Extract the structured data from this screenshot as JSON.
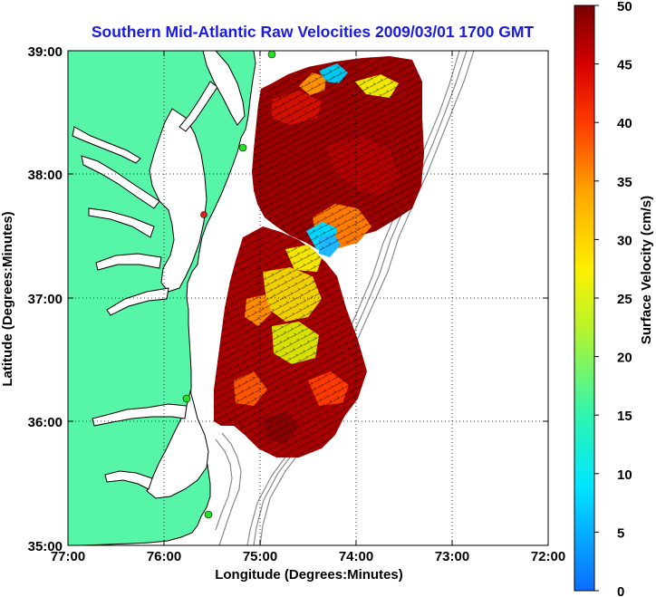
{
  "title": "Southern Mid-Atlantic Raw Velocities 2009/03/01 1700 GMT",
  "axes": {
    "xlabel": "Longitude (Degrees:Minutes)",
    "ylabel": "Latitude (Degrees:Minutes)",
    "xticks": [
      "77:00",
      "76:00",
      "75:00",
      "74:00",
      "73:00",
      "72:00"
    ],
    "yticks": [
      "39:00",
      "38:00",
      "37:00",
      "36:00",
      "35:00"
    ]
  },
  "colorbar": {
    "label": "Surface Velocity (cm/s)",
    "ticks": [
      "50",
      "45",
      "40",
      "35",
      "30",
      "25",
      "20",
      "15",
      "10",
      "5",
      "0"
    ],
    "min": 0,
    "max": 50
  },
  "colors": {
    "land": "#57f5a8",
    "coastline": "#000000",
    "title": "#1a1ae6",
    "bathymetry": "#8a8a8a",
    "station_active": "#22e022",
    "station_inactive": "#e02020"
  },
  "chart_data": {
    "type": "heatmap",
    "title": "Southern Mid-Atlantic Raw Velocities 2009/03/01 1700 GMT",
    "xlabel": "Longitude (Degrees:Minutes)",
    "ylabel": "Latitude (Degrees:Minutes)",
    "xlim": [
      -77,
      -72
    ],
    "ylim": [
      35,
      39
    ],
    "colorbar_label": "Surface Velocity (cm/s)",
    "colorbar_range": [
      0,
      50
    ],
    "stations": [
      {
        "lon": -74.88,
        "lat": 38.97,
        "status": "active"
      },
      {
        "lon": -75.15,
        "lat": 38.22,
        "status": "active"
      },
      {
        "lon": -75.57,
        "lat": 37.67,
        "status": "inactive"
      },
      {
        "lon": -75.72,
        "lat": 36.18,
        "status": "active"
      },
      {
        "lon": -75.48,
        "lat": 35.25,
        "status": "active"
      }
    ]
  }
}
